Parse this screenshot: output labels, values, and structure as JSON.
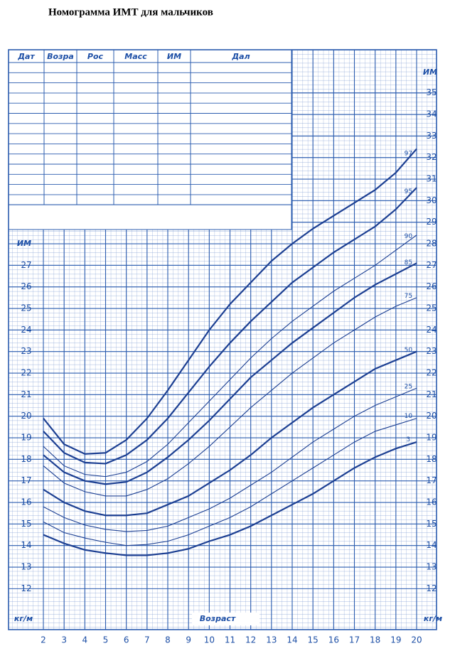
{
  "chart_data": {
    "type": "line",
    "title": "Номограмма ИМТ для мальчиков",
    "x": [
      2,
      3,
      4,
      5,
      6,
      7,
      8,
      9,
      10,
      11,
      12,
      13,
      14,
      15,
      16,
      17,
      18,
      19,
      20
    ],
    "xlim": [
      0.32,
      20.96
    ],
    "xticks": [
      2,
      3,
      4,
      5,
      6,
      7,
      8,
      9,
      10,
      11,
      12,
      13,
      14,
      15,
      16,
      17,
      18,
      19,
      20
    ],
    "xlabel": "Возраст",
    "ylim": [
      10.1,
      37
    ],
    "yticks": [
      12,
      13,
      14,
      15,
      16,
      17,
      18,
      19,
      20,
      21,
      22,
      23,
      24,
      25,
      26,
      27
    ],
    "y2lim": [
      10.1,
      37
    ],
    "y2ticks": [
      12,
      13,
      14,
      15,
      16,
      17,
      18,
      19,
      20,
      21,
      22,
      23,
      24,
      25,
      26,
      27,
      28,
      29,
      30,
      31,
      32,
      33,
      34,
      35
    ],
    "ylabel": "ИМ",
    "y2label": "ИМ",
    "unit": "кг/м",
    "grid": true,
    "grid_color": "#2b5caf",
    "series": [
      {
        "name": "97",
        "color": "#1c3f92",
        "width": 2.2,
        "values": [
          19.9,
          18.7,
          18.25,
          18.3,
          18.9,
          19.9,
          21.2,
          22.6,
          24.0,
          25.2,
          26.2,
          27.2,
          28.0,
          28.7,
          29.3,
          29.9,
          30.5,
          31.3,
          32.4
        ]
      },
      {
        "name": "95",
        "color": "#1c3f92",
        "width": 2.2,
        "values": [
          19.3,
          18.3,
          17.85,
          17.8,
          18.2,
          18.9,
          19.9,
          21.1,
          22.3,
          23.4,
          24.4,
          25.3,
          26.2,
          26.9,
          27.6,
          28.2,
          28.8,
          29.6,
          30.6
        ]
      },
      {
        "name": "90",
        "color": "#1c3f92",
        "width": 1.1,
        "values": [
          18.6,
          17.7,
          17.3,
          17.2,
          17.4,
          17.9,
          18.7,
          19.7,
          20.7,
          21.7,
          22.7,
          23.6,
          24.4,
          25.1,
          25.8,
          26.4,
          27.0,
          27.7,
          28.4
        ]
      },
      {
        "name": "85",
        "color": "#1c3f92",
        "width": 2.2,
        "values": [
          18.2,
          17.4,
          17.0,
          16.85,
          16.95,
          17.4,
          18.1,
          18.9,
          19.8,
          20.8,
          21.8,
          22.6,
          23.4,
          24.1,
          24.8,
          25.5,
          26.1,
          26.6,
          27.1
        ]
      },
      {
        "name": "75",
        "color": "#1c3f92",
        "width": 1.1,
        "values": [
          17.7,
          16.9,
          16.5,
          16.3,
          16.3,
          16.6,
          17.1,
          17.8,
          18.6,
          19.5,
          20.4,
          21.2,
          22.0,
          22.7,
          23.4,
          24.0,
          24.6,
          25.1,
          25.5
        ]
      },
      {
        "name": "50",
        "color": "#1c3f92",
        "width": 2.2,
        "values": [
          16.6,
          16.0,
          15.6,
          15.4,
          15.4,
          15.5,
          15.9,
          16.3,
          16.9,
          17.5,
          18.2,
          19.0,
          19.7,
          20.4,
          21.0,
          21.6,
          22.2,
          22.6,
          23.0
        ]
      },
      {
        "name": "25",
        "color": "#1c3f92",
        "width": 1.1,
        "values": [
          15.8,
          15.3,
          14.95,
          14.75,
          14.65,
          14.7,
          14.9,
          15.3,
          15.7,
          16.2,
          16.8,
          17.4,
          18.1,
          18.8,
          19.4,
          20.0,
          20.5,
          20.9,
          21.3
        ]
      },
      {
        "name": "10",
        "color": "#1c3f92",
        "width": 1.1,
        "values": [
          15.1,
          14.6,
          14.35,
          14.15,
          14.0,
          14.05,
          14.2,
          14.5,
          14.9,
          15.3,
          15.8,
          16.4,
          17.0,
          17.6,
          18.2,
          18.8,
          19.3,
          19.6,
          19.9
        ]
      },
      {
        "name": "3",
        "color": "#1c3f92",
        "width": 2.2,
        "values": [
          14.5,
          14.1,
          13.8,
          13.65,
          13.55,
          13.55,
          13.65,
          13.85,
          14.2,
          14.5,
          14.9,
          15.4,
          15.9,
          16.4,
          17.0,
          17.6,
          18.1,
          18.5,
          18.8
        ]
      }
    ]
  },
  "table": {
    "headers": [
      "Дат",
      "Возра",
      "Рос",
      "Масс",
      "ИМ",
      "Дал"
    ]
  }
}
